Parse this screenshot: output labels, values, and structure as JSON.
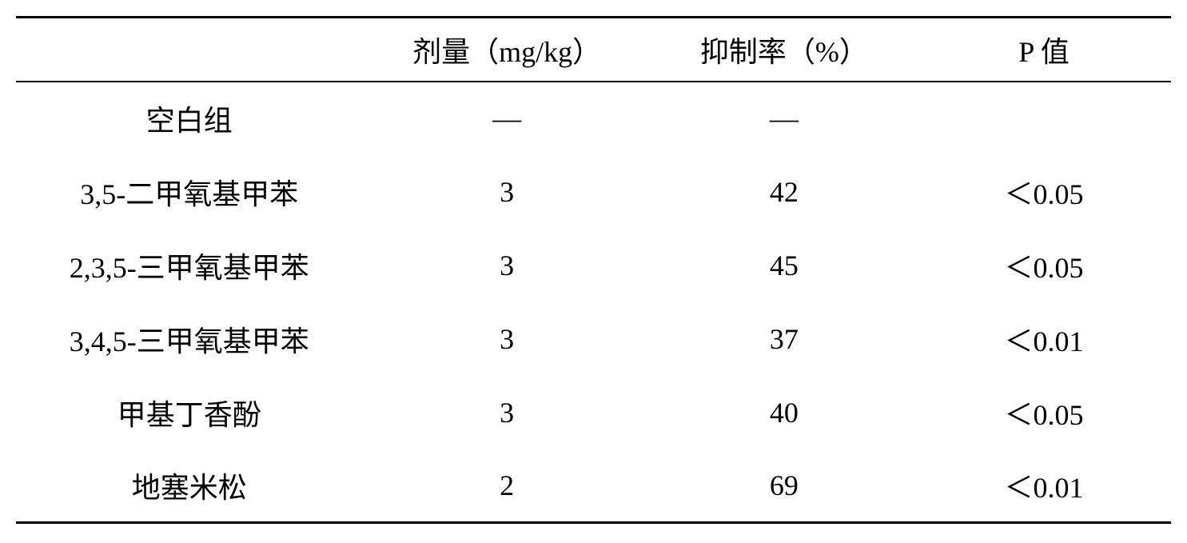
{
  "table": {
    "type": "table",
    "background_color": "#ffffff",
    "text_color": "#000000",
    "border_color": "#000000",
    "border_top_width": 3,
    "header_border_width": 2,
    "border_bottom_width": 3,
    "font_family": "SimSun",
    "font_size_pt": 27,
    "columns": [
      {
        "label": "",
        "width_pct": 30,
        "align": "center"
      },
      {
        "label": "剂量（mg/kg）",
        "width_pct": 25,
        "align": "center"
      },
      {
        "label": "抑制率（%）",
        "width_pct": 23,
        "align": "center"
      },
      {
        "label": "P 值",
        "width_pct": 22,
        "align": "center"
      }
    ],
    "rows": [
      {
        "name": "空白组",
        "dose": "—",
        "inhibition": "—",
        "p": ""
      },
      {
        "name": "3,5-二甲氧基甲苯",
        "dose": "3",
        "inhibition": "42",
        "p": "＜0.05"
      },
      {
        "name": "2,3,5-三甲氧基甲苯",
        "dose": "3",
        "inhibition": "45",
        "p": "＜0.05"
      },
      {
        "name": "3,4,5-三甲氧基甲苯",
        "dose": "3",
        "inhibition": "37",
        "p": "＜0.01"
      },
      {
        "name": "甲基丁香酚",
        "dose": "3",
        "inhibition": "40",
        "p": "＜0.05"
      },
      {
        "name": "地塞米松",
        "dose": "2",
        "inhibition": "69",
        "p": "＜0.01"
      }
    ]
  }
}
